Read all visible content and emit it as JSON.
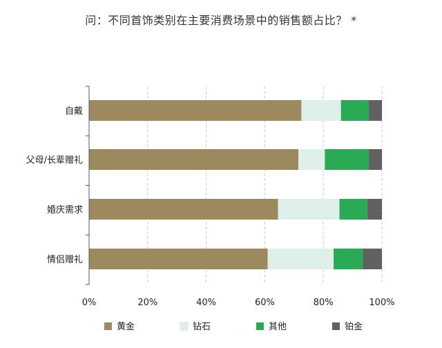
{
  "chart_data": {
    "type": "bar",
    "orientation": "horizontal",
    "stacked": true,
    "title": "问：不同首饰类别在主要消费场景中的销售额占比？ *",
    "categories": [
      "自戴",
      "父母/长辈赠礼",
      "婚庆需求",
      "情侣赠礼"
    ],
    "series": [
      {
        "name": "黄金",
        "color": "#9c8a5e",
        "values": [
          72.5,
          71.5,
          64.5,
          61
        ]
      },
      {
        "name": "钻石",
        "color": "#dff0ea",
        "values": [
          13.5,
          9,
          21,
          22.5
        ]
      },
      {
        "name": "其他",
        "color": "#2aaa55",
        "values": [
          9.5,
          15,
          9.5,
          10
        ]
      },
      {
        "name": "铂金",
        "color": "#616161",
        "values": [
          4.5,
          4.5,
          5,
          6.5
        ]
      }
    ],
    "xlim": [
      0,
      100
    ],
    "x_ticks": [
      "0%",
      "20%",
      "40%",
      "60%",
      "80%",
      "100%"
    ],
    "grid": "vertical dashed",
    "legend_position": "bottom"
  }
}
